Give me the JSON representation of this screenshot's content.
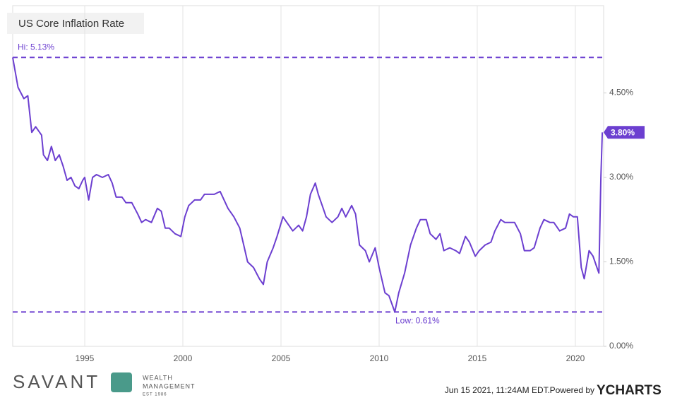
{
  "chart_data": {
    "type": "line",
    "title": "US Core Inflation Rate",
    "x": [
      1991.33,
      1991.6,
      1991.9,
      1992.1,
      1992.3,
      1992.5,
      1992.8,
      1992.9,
      1993.1,
      1993.3,
      1993.5,
      1993.7,
      1993.9,
      1994.1,
      1994.3,
      1994.5,
      1994.7,
      1994.9,
      1995.0,
      1995.2,
      1995.4,
      1995.6,
      1995.9,
      1996.2,
      1996.4,
      1996.6,
      1996.9,
      1997.1,
      1997.4,
      1997.7,
      1997.9,
      1998.1,
      1998.4,
      1998.7,
      1998.9,
      1999.1,
      1999.3,
      1999.6,
      1999.9,
      2000.1,
      2000.3,
      2000.6,
      2000.9,
      2001.1,
      2001.3,
      2001.6,
      2001.9,
      2002.1,
      2002.3,
      2002.6,
      2002.9,
      2003.1,
      2003.3,
      2003.6,
      2003.9,
      2004.1,
      2004.3,
      2004.6,
      2004.8,
      2005.1,
      2005.3,
      2005.6,
      2005.9,
      2006.1,
      2006.3,
      2006.5,
      2006.75,
      2006.9,
      2007.1,
      2007.3,
      2007.6,
      2007.9,
      2008.1,
      2008.3,
      2008.6,
      2008.8,
      2009.0,
      2009.3,
      2009.5,
      2009.8,
      2010.0,
      2010.3,
      2010.5,
      2010.8,
      2011.0,
      2011.3,
      2011.6,
      2011.9,
      2012.1,
      2012.4,
      2012.6,
      2012.9,
      2013.1,
      2013.3,
      2013.6,
      2013.9,
      2014.1,
      2014.4,
      2014.6,
      2014.9,
      2015.1,
      2015.4,
      2015.7,
      2015.9,
      2016.2,
      2016.4,
      2016.7,
      2016.9,
      2017.2,
      2017.4,
      2017.7,
      2017.9,
      2018.2,
      2018.4,
      2018.7,
      2018.9,
      2019.2,
      2019.5,
      2019.7,
      2019.9,
      2020.1,
      2020.3,
      2020.45,
      2020.7,
      2020.9,
      2021.1,
      2021.2,
      2021.3,
      2021.37
    ],
    "series": [
      {
        "color": "#6c3fd0",
        "values": [
          5.13,
          4.6,
          4.4,
          4.45,
          3.8,
          3.9,
          3.75,
          3.4,
          3.3,
          3.55,
          3.3,
          3.4,
          3.2,
          2.95,
          3.0,
          2.85,
          2.8,
          2.95,
          3.0,
          2.6,
          3.0,
          3.05,
          3.0,
          3.05,
          2.9,
          2.65,
          2.65,
          2.55,
          2.55,
          2.35,
          2.2,
          2.25,
          2.2,
          2.45,
          2.4,
          2.1,
          2.1,
          2.0,
          1.95,
          2.3,
          2.5,
          2.6,
          2.6,
          2.7,
          2.7,
          2.7,
          2.75,
          2.6,
          2.45,
          2.3,
          2.1,
          1.8,
          1.5,
          1.4,
          1.2,
          1.1,
          1.5,
          1.75,
          1.95,
          2.3,
          2.2,
          2.05,
          2.15,
          2.05,
          2.3,
          2.7,
          2.9,
          2.7,
          2.5,
          2.3,
          2.2,
          2.3,
          2.45,
          2.3,
          2.5,
          2.35,
          1.8,
          1.7,
          1.5,
          1.75,
          1.4,
          0.95,
          0.9,
          0.61,
          0.95,
          1.3,
          1.8,
          2.1,
          2.25,
          2.25,
          2.0,
          1.9,
          2.0,
          1.7,
          1.75,
          1.7,
          1.65,
          1.95,
          1.85,
          1.6,
          1.7,
          1.8,
          1.85,
          2.05,
          2.25,
          2.2,
          2.2,
          2.2,
          2.0,
          1.7,
          1.7,
          1.75,
          2.1,
          2.25,
          2.2,
          2.2,
          2.05,
          2.1,
          2.35,
          2.3,
          2.3,
          1.4,
          1.2,
          1.7,
          1.6,
          1.4,
          1.3,
          3.0,
          3.8
        ]
      }
    ],
    "xlim": [
      1991.33,
      2021.44
    ],
    "xticks": [
      1995,
      2000,
      2005,
      2010,
      2015,
      2020
    ],
    "ylim": [
      0,
      6.05
    ],
    "yticks": [
      {
        "value": 0,
        "label": "0.00%"
      },
      {
        "value": 1.5,
        "label": "1.50%"
      },
      {
        "value": 3,
        "label": "3.00%"
      },
      {
        "value": 4.5,
        "label": "4.50%"
      }
    ],
    "grid": "x",
    "reference_lines": [
      {
        "label": "Hi: 5.13%",
        "value": 5.13
      },
      {
        "label": "Low: 0.61%",
        "value": 0.61
      }
    ],
    "last_value": {
      "label": "3.80%",
      "value": 3.8
    }
  },
  "footer": {
    "brand": "SAVANT",
    "brand_sub": [
      "WEALTH",
      "MANAGEMENT",
      "EST 1986"
    ],
    "timestamp": "Jun 15 2021, 11:24AM EDT.",
    "powered": "Powered by",
    "provider": "YCHARTS"
  }
}
